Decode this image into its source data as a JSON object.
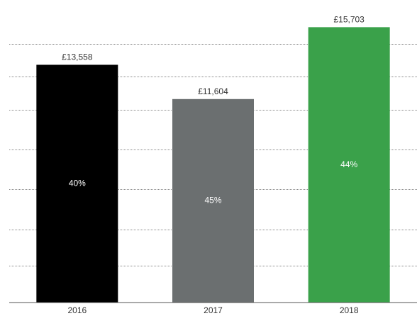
{
  "chart_data": {
    "type": "bar",
    "categories": [
      "2016",
      "2017",
      "2018"
    ],
    "values": [
      13558,
      11604,
      15703
    ],
    "value_labels": [
      "£13,558",
      "£11,604",
      "£15,703"
    ],
    "inner_labels": [
      "40%",
      "45%",
      "44%"
    ],
    "colors": [
      "#000000",
      "#6b6f70",
      "#3aa14a"
    ],
    "ylim": [
      0,
      16000
    ]
  }
}
